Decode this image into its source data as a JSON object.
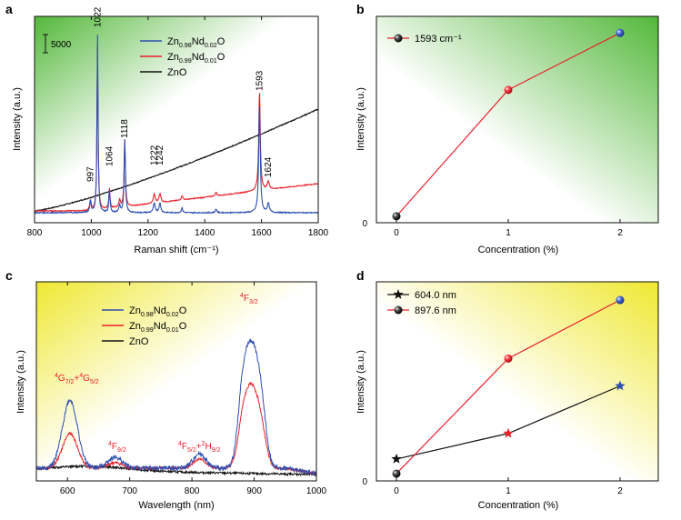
{
  "colors": {
    "zn098": "#2d4fb0",
    "zn099": "#e8202a",
    "zno": "#111111",
    "axis": "#111111",
    "green": "#53b83a",
    "yellow": "#efe832"
  },
  "chart_data": [
    {
      "panel": "a",
      "type": "line",
      "xlabel": "Raman shift (cm⁻¹)",
      "ylabel": "Intensity (a.u.)",
      "xlim": [
        800,
        1800
      ],
      "xticks": [
        800,
        1000,
        1200,
        1400,
        1600,
        1800
      ],
      "scale_bar": "5000",
      "legend_position": "top-center",
      "series": [
        {
          "name": "Zn0.98Nd0.02O",
          "name_parts": [
            "Zn",
            "0.98",
            "Nd",
            "0.02",
            "O"
          ],
          "color": "#2d4fb0"
        },
        {
          "name": "Zn0.99Nd0.01O",
          "name_parts": [
            "Zn",
            "0.99",
            "Nd",
            "0.01",
            "O"
          ],
          "color": "#e8202a"
        },
        {
          "name": "ZnO",
          "name_parts": [
            "ZnO",
            "",
            "",
            "",
            ""
          ],
          "color": "#111111"
        }
      ],
      "peaks": [
        {
          "label": "997",
          "x": 997
        },
        {
          "label": "1022",
          "x": 1022
        },
        {
          "label": "1064",
          "x": 1064
        },
        {
          "label": "1118",
          "x": 1118
        },
        {
          "label": "1222",
          "x": 1222
        },
        {
          "label": "1242",
          "x": 1242
        },
        {
          "label": "1593",
          "x": 1593
        },
        {
          "label": "1624",
          "x": 1624
        }
      ]
    },
    {
      "panel": "b",
      "type": "line",
      "xlabel": "Concentration (%)",
      "ylabel": "Intensity (a.u.)",
      "x": [
        0,
        1,
        2
      ],
      "xticks": [
        "0",
        "1",
        "2"
      ],
      "y_origin_label": "0",
      "legend_position": "top-left",
      "series": [
        {
          "name": "1593 cm⁻¹",
          "values": [
            0.015,
            0.68,
            0.98
          ],
          "colors": [
            "#111111",
            "#e8202a",
            "#2d4fb0"
          ],
          "line_color": "#e8202a"
        }
      ]
    },
    {
      "panel": "c",
      "type": "line",
      "xlabel": "Wavelength (nm)",
      "ylabel": "Intensity (a.u.)",
      "xlim": [
        550,
        1000
      ],
      "xticks": [
        600,
        700,
        800,
        900,
        1000
      ],
      "legend_position": "top-left",
      "series": [
        {
          "name": "Zn0.98Nd0.02O",
          "name_parts": [
            "Zn",
            "0.98",
            "Nd",
            "0.02",
            "O"
          ],
          "color": "#2d4fb0"
        },
        {
          "name": "Zn0.99Nd0.01O",
          "name_parts": [
            "Zn",
            "0.99",
            "Nd",
            "0.01",
            "O"
          ],
          "color": "#e8202a"
        },
        {
          "name": "ZnO",
          "name_parts": [
            "ZnO",
            "",
            "",
            "",
            ""
          ],
          "color": "#111111"
        }
      ],
      "annotations": [
        {
          "text": "4G7/2+4G5/2",
          "x": 605,
          "parts": [
            [
              "4",
              "sup"
            ],
            [
              "G",
              ""
            ],
            [
              "7/2",
              "sub"
            ],
            [
              "+",
              ""
            ],
            [
              "4",
              "sup"
            ],
            [
              "G",
              ""
            ],
            [
              "5/2",
              "sub"
            ]
          ]
        },
        {
          "text": "4F9/2",
          "x": 680,
          "parts": [
            [
              "4",
              "sup"
            ],
            [
              "F",
              ""
            ],
            [
              "9/2",
              "sub"
            ]
          ]
        },
        {
          "text": "4F5/2+2H9/2",
          "x": 815,
          "parts": [
            [
              "4",
              "sup"
            ],
            [
              "F",
              ""
            ],
            [
              "5/2",
              "sub"
            ],
            [
              "+",
              ""
            ],
            [
              "2",
              "sup"
            ],
            [
              "H",
              ""
            ],
            [
              "9/2",
              "sub"
            ]
          ]
        },
        {
          "text": "4F3/2",
          "x": 897,
          "parts": [
            [
              "4",
              "sup"
            ],
            [
              "F",
              ""
            ],
            [
              "3/2",
              "sub"
            ]
          ]
        }
      ]
    },
    {
      "panel": "d",
      "type": "line",
      "xlabel": "Concentration (%)",
      "ylabel": "Intensity (a.u.)",
      "x": [
        0,
        1,
        2
      ],
      "xticks": [
        "0",
        "1",
        "2"
      ],
      "y_origin_label": "0",
      "legend_position": "top-left",
      "series": [
        {
          "name": "604.0 nm",
          "marker": "star",
          "values": [
            0.1,
            0.24,
            0.5
          ],
          "colors": [
            "#111111",
            "#e8202a",
            "#2d4fb0"
          ],
          "line_color": "#111111"
        },
        {
          "name": "897.6 nm",
          "marker": "ball",
          "values": [
            0.02,
            0.65,
            0.97
          ],
          "colors": [
            "#111111",
            "#e8202a",
            "#2d4fb0"
          ],
          "line_color": "#e8202a"
        }
      ]
    }
  ],
  "panel_labels": [
    "a",
    "b",
    "c",
    "d"
  ]
}
